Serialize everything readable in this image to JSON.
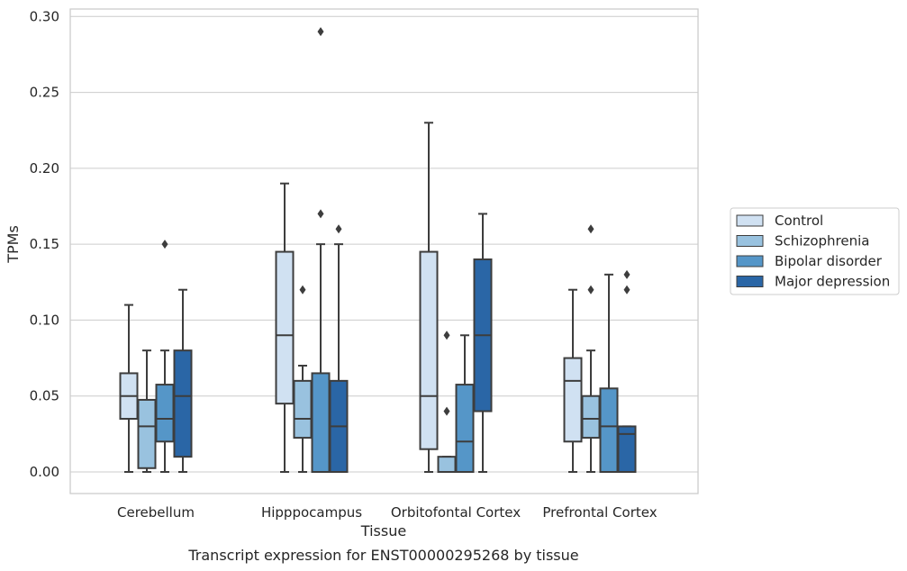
{
  "chart_data": {
    "type": "boxplot",
    "xlabel": "Tissue",
    "ylabel": "TPMs",
    "caption": "Transcript expression for ENST00000295268 by tissue",
    "ylim": [
      -0.014,
      0.306
    ],
    "yticks": [
      0.0,
      0.05,
      0.1,
      0.15,
      0.2,
      0.25,
      0.3
    ],
    "ytick_labels": [
      "0.00",
      "0.05",
      "0.10",
      "0.15",
      "0.20",
      "0.25",
      "0.30"
    ],
    "grid": "horizontal",
    "legend_position": "right",
    "categories": [
      "Cerebellum",
      "Hipppocampus",
      "Orbitofontal Cortex",
      "Prefrontal Cortex"
    ],
    "series": [
      {
        "name": "Control",
        "color": "#d0e1f2",
        "boxes": [
          {
            "whislo": 0.0,
            "q1": 0.035,
            "med": 0.05,
            "q3": 0.065,
            "whishi": 0.11,
            "fliers": []
          },
          {
            "whislo": 0.0,
            "q1": 0.045,
            "med": 0.09,
            "q3": 0.145,
            "whishi": 0.19,
            "fliers": []
          },
          {
            "whislo": 0.0,
            "q1": 0.015,
            "med": 0.05,
            "q3": 0.145,
            "whishi": 0.23,
            "fliers": []
          },
          {
            "whislo": 0.0,
            "q1": 0.02,
            "med": 0.06,
            "q3": 0.075,
            "whishi": 0.12,
            "fliers": []
          }
        ]
      },
      {
        "name": "Schizophrenia",
        "color": "#99c2df",
        "boxes": [
          {
            "whislo": 0.0,
            "q1": 0.0025,
            "med": 0.03,
            "q3": 0.0475,
            "whishi": 0.08,
            "fliers": []
          },
          {
            "whislo": 0.0,
            "q1": 0.0225,
            "med": 0.035,
            "q3": 0.06,
            "whishi": 0.07,
            "fliers": [
              0.12
            ]
          },
          {
            "whislo": 0.0,
            "q1": 0.0,
            "med": 0.0,
            "q3": 0.01,
            "whishi": 0.01,
            "fliers": [
              0.04,
              0.09
            ]
          },
          {
            "whislo": 0.0,
            "q1": 0.0225,
            "med": 0.035,
            "q3": 0.05,
            "whishi": 0.08,
            "fliers": [
              0.12,
              0.16
            ]
          }
        ]
      },
      {
        "name": "Bipolar disorder",
        "color": "#5596c8",
        "boxes": [
          {
            "whislo": 0.0,
            "q1": 0.02,
            "med": 0.035,
            "q3": 0.0575,
            "whishi": 0.08,
            "fliers": [
              0.15
            ]
          },
          {
            "whislo": 0.0,
            "q1": 0.0,
            "med": 0.0,
            "q3": 0.065,
            "whishi": 0.15,
            "fliers": [
              0.17,
              0.29
            ]
          },
          {
            "whislo": 0.0,
            "q1": 0.0,
            "med": 0.02,
            "q3": 0.0575,
            "whishi": 0.09,
            "fliers": []
          },
          {
            "whislo": 0.0,
            "q1": 0.0,
            "med": 0.03,
            "q3": 0.055,
            "whishi": 0.13,
            "fliers": []
          }
        ]
      },
      {
        "name": "Major depression",
        "color": "#2a66a6",
        "boxes": [
          {
            "whislo": 0.0,
            "q1": 0.01,
            "med": 0.05,
            "q3": 0.08,
            "whishi": 0.12,
            "fliers": []
          },
          {
            "whislo": 0.0,
            "q1": 0.0,
            "med": 0.03,
            "q3": 0.06,
            "whishi": 0.15,
            "fliers": [
              0.16
            ]
          },
          {
            "whislo": 0.0,
            "q1": 0.04,
            "med": 0.09,
            "q3": 0.14,
            "whishi": 0.17,
            "fliers": []
          },
          {
            "whislo": 0.0,
            "q1": 0.0,
            "med": 0.025,
            "q3": 0.03,
            "whishi": 0.03,
            "fliers": [
              0.12,
              0.13
            ]
          }
        ]
      }
    ]
  }
}
